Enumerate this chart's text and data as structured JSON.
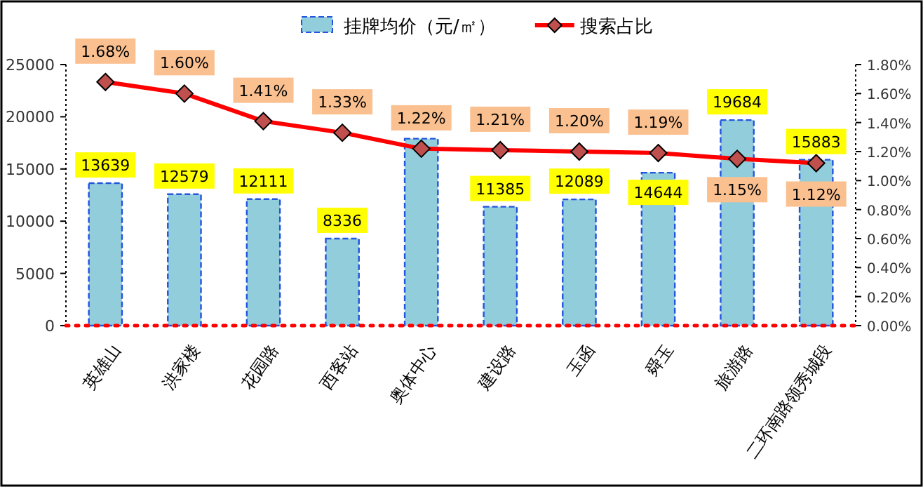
{
  "chart_data": {
    "type": "bar",
    "categories": [
      "英雄山",
      "洪家楼",
      "花园路",
      "西客站",
      "奥体中心",
      "建设路",
      "玉函",
      "舜玉",
      "旅游路",
      "二环南路领秀城段"
    ],
    "series": [
      {
        "name": "挂牌均价（元/㎡）",
        "color": "#92cddc",
        "values": [
          13639,
          12579,
          12111,
          8336,
          17900,
          11385,
          12089,
          14644,
          19684,
          15883
        ],
        "value_labels": [
          "13639",
          "12579",
          "12111",
          "8336",
          null,
          "11385",
          "12089",
          "14644",
          "19684",
          "15883"
        ]
      },
      {
        "name": "搜索占比",
        "type": "line",
        "axis": "y2",
        "color": "#ff0000",
        "marker": "diamond",
        "values": [
          1.68,
          1.6,
          1.41,
          1.33,
          1.22,
          1.21,
          1.2,
          1.19,
          1.15,
          1.12
        ],
        "value_labels": [
          "1.68%",
          "1.60%",
          "1.41%",
          "1.33%",
          "1.22%",
          "1.21%",
          "1.20%",
          "1.19%",
          "1.15%",
          "1.12%"
        ]
      }
    ],
    "ylim": [
      0,
      25000
    ],
    "yticks": [
      0,
      5000,
      10000,
      15000,
      20000,
      25000
    ],
    "y2lim": [
      0,
      1.8
    ],
    "y2ticks": [
      {
        "value": 0,
        "label": "0.00%"
      },
      {
        "value": 0.2,
        "label": "0.20%"
      },
      {
        "value": 0.4,
        "label": "0.40%"
      },
      {
        "value": 0.6,
        "label": "0.60%"
      },
      {
        "value": 0.8,
        "label": "0.80%"
      },
      {
        "value": 1.0,
        "label": "1.00%"
      },
      {
        "value": 1.2,
        "label": "1.20%"
      },
      {
        "value": 1.4,
        "label": "1.40%"
      },
      {
        "value": 1.6,
        "label": "1.60%"
      },
      {
        "value": 1.8,
        "label": "1.80%"
      }
    ],
    "legend": "top",
    "grid": false
  }
}
